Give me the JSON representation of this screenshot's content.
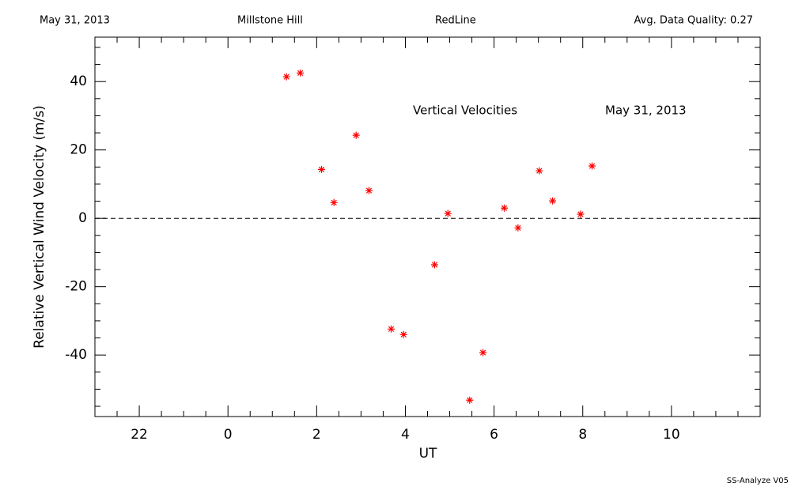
{
  "header": {
    "date": "May 31, 2013",
    "site": "Millstone Hill",
    "emission": "RedLine",
    "quality": "Avg. Data Quality: 0.27"
  },
  "footer": "SS-Analyze V05",
  "chart_data": {
    "type": "scatter",
    "annotations": [
      "Vertical Velocities",
      "May 31, 2013"
    ],
    "xlabel": "UT",
    "ylabel": "Relative Vertical Wind Velocity (m/s)",
    "color": "#ff0000",
    "x": [
      1.32,
      1.63,
      2.11,
      2.39,
      2.89,
      3.18,
      3.68,
      3.96,
      4.66,
      4.96,
      5.45,
      5.75,
      6.23,
      6.54,
      7.02,
      7.32,
      7.95,
      8.21
    ],
    "values": [
      41.4,
      42.5,
      14.3,
      4.6,
      24.3,
      8.1,
      -32.4,
      -34.0,
      -13.6,
      1.4,
      -53.2,
      -39.3,
      3.0,
      -2.8,
      13.9,
      5.1,
      1.2,
      15.3
    ],
    "xlim": [
      -3,
      12
    ],
    "ylim": [
      -58,
      53
    ],
    "xticks": [
      {
        "value": -2,
        "label": "22"
      },
      0,
      2,
      4,
      6,
      8,
      10
    ],
    "yticks": [
      -40,
      -20,
      0,
      20,
      40
    ],
    "xminorticks": [
      -2.5,
      -1.5,
      -1,
      -0.5,
      0.5,
      1,
      1.5,
      2.5,
      3,
      3.5,
      4.5,
      5,
      5.5,
      6.5,
      7,
      7.5,
      8.5,
      9,
      9.5,
      10.5,
      11,
      11.5
    ],
    "yminorticks": [
      -55,
      -50,
      -45,
      -35,
      -30,
      -25,
      -15,
      -10,
      -5,
      5,
      10,
      15,
      25,
      30,
      35,
      45,
      50
    ],
    "reference_line": 0
  }
}
